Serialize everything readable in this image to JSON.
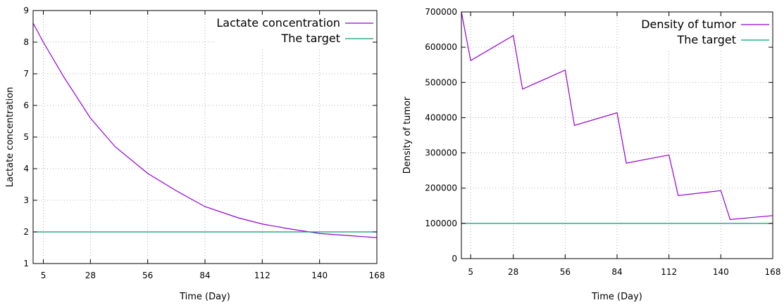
{
  "chart_data": [
    {
      "type": "line",
      "title": "",
      "xlabel": "Time (Day)",
      "ylabel": "Lactate concentration",
      "xlim": [
        0,
        168
      ],
      "ylim": [
        1,
        9
      ],
      "xticks": [
        5,
        28,
        56,
        84,
        112,
        140,
        168
      ],
      "yticks": [
        1,
        2,
        3,
        4,
        5,
        6,
        7,
        8,
        9
      ],
      "grid": true,
      "legend_position": "top-right",
      "series": [
        {
          "name": "Lactate concentration",
          "color": "#9400d3",
          "x": [
            0,
            5,
            15,
            28,
            40,
            56,
            70,
            84,
            100,
            112,
            125,
            140,
            155,
            168
          ],
          "y": [
            8.6,
            8.0,
            6.9,
            5.6,
            4.7,
            3.85,
            3.3,
            2.8,
            2.45,
            2.25,
            2.1,
            1.95,
            1.88,
            1.82
          ]
        },
        {
          "name": "The target",
          "color": "#009e73",
          "x": [
            0,
            168
          ],
          "y": [
            2,
            2
          ]
        }
      ]
    },
    {
      "type": "line",
      "title": "",
      "xlabel": "Time (Day)",
      "ylabel": "Density of tumor",
      "xlim": [
        0,
        168
      ],
      "ylim": [
        0,
        700000
      ],
      "xticks": [
        5,
        28,
        56,
        84,
        112,
        140,
        168
      ],
      "yticks": [
        0,
        100000,
        200000,
        300000,
        400000,
        500000,
        600000,
        700000
      ],
      "grid": true,
      "legend_position": "top-right",
      "series": [
        {
          "name": "Density of tumor",
          "color": "#9400d3",
          "x": [
            0,
            5,
            28,
            33,
            56,
            61,
            84,
            89,
            112,
            117,
            140,
            145,
            168
          ],
          "y": [
            700000,
            562000,
            633000,
            481000,
            535000,
            378000,
            414000,
            271000,
            294000,
            179000,
            193000,
            111000,
            122000
          ]
        },
        {
          "name": "The target",
          "color": "#009e73",
          "x": [
            0,
            168
          ],
          "y": [
            100000,
            100000
          ]
        }
      ]
    }
  ]
}
